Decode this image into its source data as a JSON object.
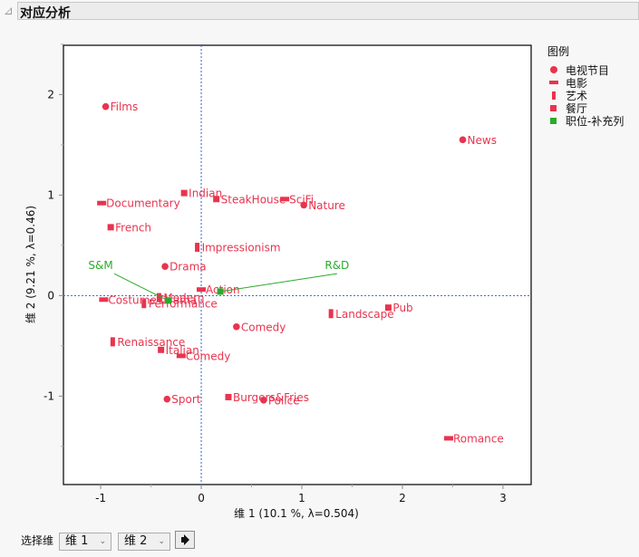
{
  "header": {
    "title": "对应分析"
  },
  "legend": {
    "title": "图例",
    "items": [
      {
        "label": "电视节目",
        "shape": "circle",
        "color": "#e8344e"
      },
      {
        "label": "电影",
        "shape": "hbar",
        "color": "#e8344e"
      },
      {
        "label": "艺术",
        "shape": "vbar",
        "color": "#e8344e"
      },
      {
        "label": "餐厅",
        "shape": "square",
        "color": "#e8344e"
      },
      {
        "label": "职位-补充列",
        "shape": "square",
        "color": "#2aab2a"
      }
    ]
  },
  "controls": {
    "select_label": "选择维",
    "dim_x": "维 1",
    "dim_y": "维 2",
    "go_icon": "arrow-right-icon"
  },
  "chart_data": {
    "type": "scatter",
    "title": "对应分析",
    "xlabel": "维 1  (10.1 %, λ=0.504)",
    "ylabel": "维 2  (9.21 %, λ=0.46)",
    "xlim": [
      -1.37,
      3.28
    ],
    "ylim": [
      -1.88,
      2.49
    ],
    "xticks": [
      -1,
      0,
      1,
      2,
      3
    ],
    "yticks": [
      -1,
      0,
      1,
      2
    ],
    "reference_lines": {
      "x": 0,
      "y": 0,
      "style": "dotted",
      "color": "#2b66d6"
    },
    "grid": false,
    "legend_position": "right",
    "series": [
      {
        "name": "电视节目",
        "shape": "circle",
        "color": "#e8344e",
        "points": [
          {
            "label": "Films",
            "x": -0.95,
            "y": 1.88
          },
          {
            "label": "News",
            "x": 2.6,
            "y": 1.55
          },
          {
            "label": "Nature",
            "x": 1.02,
            "y": 0.9
          },
          {
            "label": "Drama",
            "x": -0.36,
            "y": 0.29
          },
          {
            "label": "Comedy",
            "x": 0.35,
            "y": -0.31
          },
          {
            "label": "Sport",
            "x": -0.34,
            "y": -1.03
          },
          {
            "label": "Police",
            "x": 0.62,
            "y": -1.04
          }
        ]
      },
      {
        "name": "电影",
        "shape": "hbar",
        "color": "#e8344e",
        "points": [
          {
            "label": "Documentary",
            "x": -0.99,
            "y": 0.92
          },
          {
            "label": "SciFi",
            "x": 0.83,
            "y": 0.96
          },
          {
            "label": "Action",
            "x": 0.0,
            "y": 0.06
          },
          {
            "label": "Costume Drama",
            "x": -0.97,
            "y": -0.04
          },
          {
            "label": "Comedy",
            "x": -0.2,
            "y": -0.6
          },
          {
            "label": "Romance",
            "x": 2.46,
            "y": -1.42
          }
        ]
      },
      {
        "name": "艺术",
        "shape": "vbar",
        "color": "#e8344e",
        "points": [
          {
            "label": "Impressionism",
            "x": -0.04,
            "y": 0.48
          },
          {
            "label": "Modern",
            "x": -0.42,
            "y": -0.02
          },
          {
            "label": "Performance",
            "x": -0.57,
            "y": -0.08
          },
          {
            "label": "Landscape",
            "x": 1.29,
            "y": -0.18
          },
          {
            "label": "Renaissance",
            "x": -0.88,
            "y": -0.46
          }
        ]
      },
      {
        "name": "餐厅",
        "shape": "square",
        "color": "#e8344e",
        "points": [
          {
            "label": "Indian",
            "x": -0.17,
            "y": 1.02
          },
          {
            "label": "SteakHouse",
            "x": 0.15,
            "y": 0.96
          },
          {
            "label": "French",
            "x": -0.9,
            "y": 0.68
          },
          {
            "label": "Pub",
            "x": 1.86,
            "y": -0.12
          },
          {
            "label": "Italian",
            "x": -0.4,
            "y": -0.54
          },
          {
            "label": "Burgers&Fries",
            "x": 0.27,
            "y": -1.01
          }
        ]
      },
      {
        "name": "职位-补充列",
        "shape": "square",
        "color": "#2aab2a",
        "points": [
          {
            "label": "S&M",
            "x": -0.33,
            "y": -0.05,
            "label_x": -1.0,
            "label_y": 0.29
          },
          {
            "label": "R&D",
            "x": 0.19,
            "y": 0.04,
            "label_x": 1.35,
            "label_y": 0.29
          }
        ]
      }
    ]
  }
}
